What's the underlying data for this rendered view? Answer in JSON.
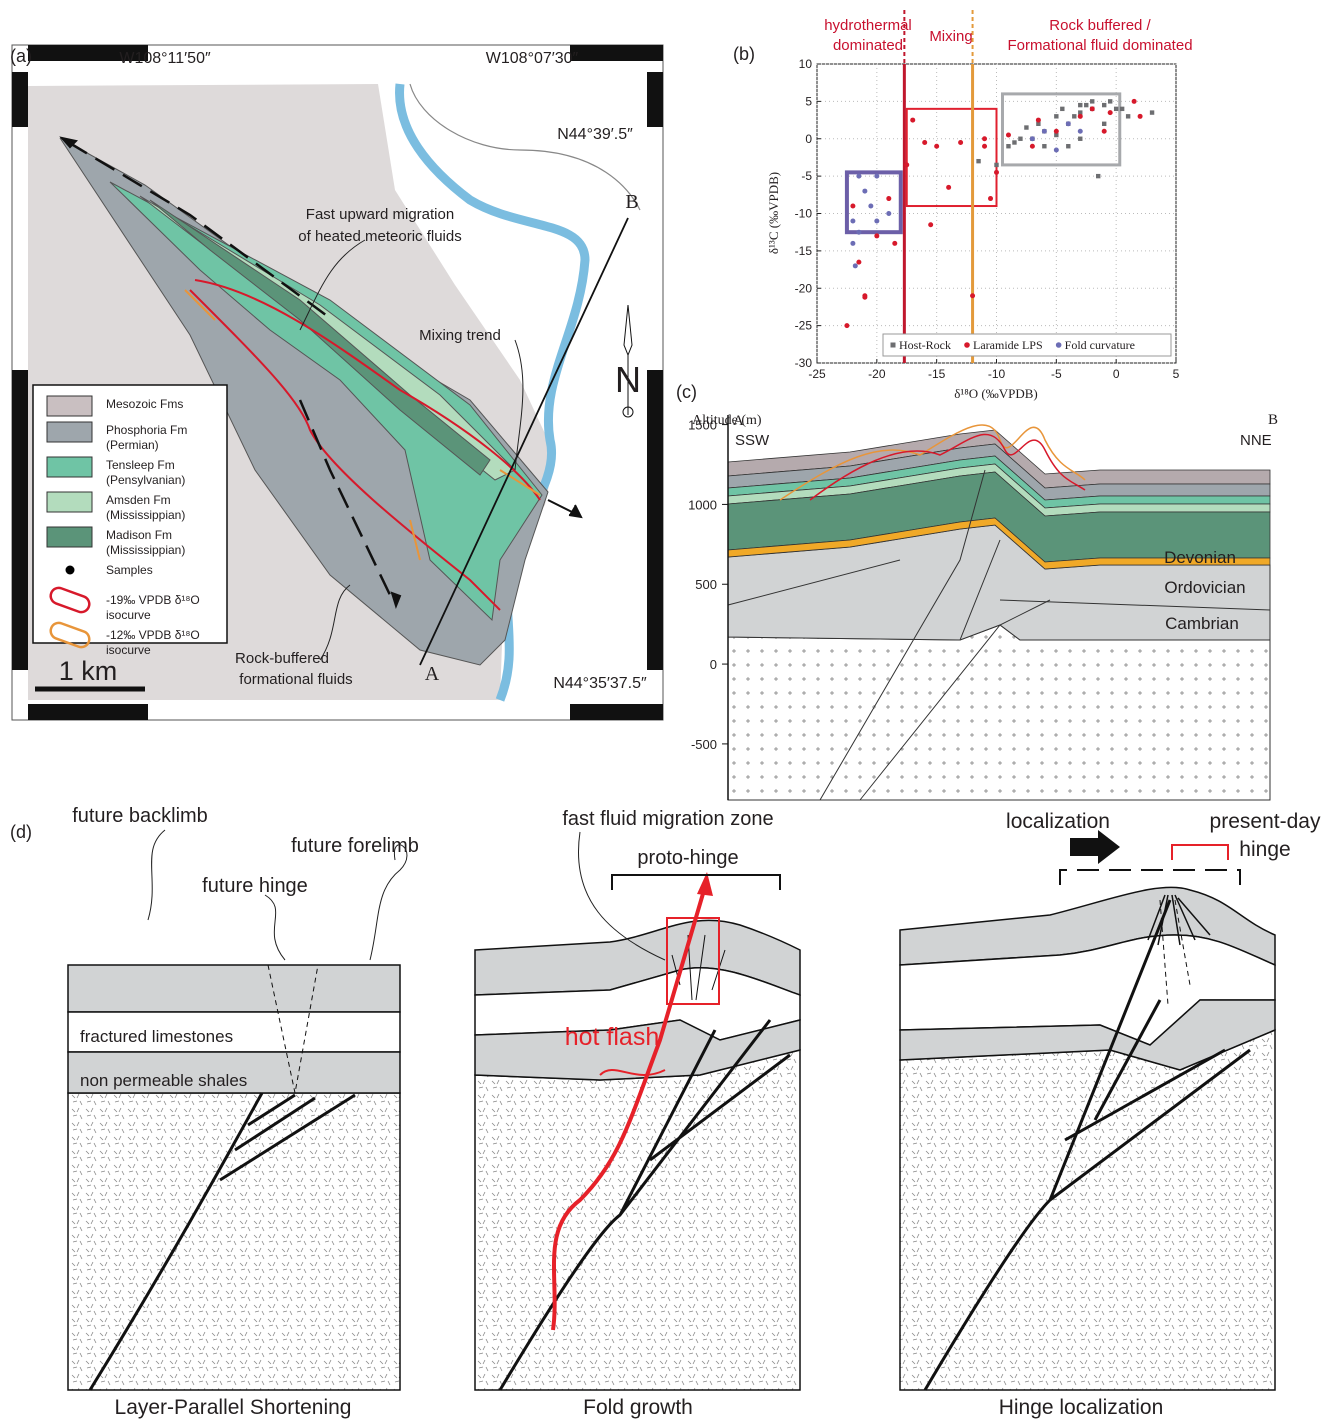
{
  "panel_a": {
    "label": "(a)",
    "lon_left": "W108°11′50″",
    "lon_right": "W108°07′30″",
    "lat_top": "N44°39′.5″",
    "lat_bottom": "N44°35′37.5″",
    "point_a": "A",
    "point_b": "B",
    "north": "N",
    "scale": "1 km",
    "annotations": [
      "Fast upward migration",
      "of heated meteoric fluids",
      "Mixing trend",
      "Rock-buffered",
      "formational fluids"
    ],
    "legend": [
      {
        "kind": "fill",
        "color": "#c9bfc1",
        "lines": [
          "Mesozoic Fms"
        ]
      },
      {
        "kind": "fill",
        "color": "#9ea6ac",
        "lines": [
          "Phosphoria Fm",
          "(Permian)"
        ]
      },
      {
        "kind": "fill",
        "color": "#6fc4a5",
        "lines": [
          "Tensleep Fm",
          "(Pensylvanian)"
        ]
      },
      {
        "kind": "fill",
        "color": "#b3dcbd",
        "lines": [
          "Amsden Fm",
          "(Mississippian)"
        ]
      },
      {
        "kind": "fill",
        "color": "#5b9479",
        "lines": [
          "Madison Fm",
          "(Mississippian)"
        ]
      },
      {
        "kind": "dot",
        "color": "#000000",
        "lines": [
          "Samples"
        ]
      },
      {
        "kind": "loop",
        "color": "#d7192b",
        "lines": [
          "-19‰ VPDB δ¹⁸O",
          "isocurve"
        ]
      },
      {
        "kind": "loop",
        "color": "#e8953a",
        "lines": [
          "-12‰ VPDB δ¹⁸O",
          "isocurve"
        ]
      }
    ]
  },
  "chart_data": {
    "type": "scatter",
    "panel_label": "(b)",
    "x_label": "δ¹⁸O (‰VPDB)",
    "y_label": "δ¹³C (‰VPDB)",
    "xlim": [
      -25,
      5
    ],
    "xticks": [
      -25,
      -20,
      -15,
      -10,
      -5,
      0,
      5
    ],
    "ylim": [
      -30,
      10
    ],
    "yticks": [
      -30,
      -25,
      -20,
      -15,
      -10,
      -5,
      0,
      5,
      10
    ],
    "grid": true,
    "legend": "lower right",
    "annotations": [
      {
        "lines": [
          "hydrothermal",
          "dominated"
        ],
        "color": "#c8102e"
      },
      {
        "lines": [
          "Mixing"
        ],
        "color": "#c8102e"
      },
      {
        "lines": [
          "Rock buffered /",
          "Formational fluid dominated"
        ],
        "color": "#c8102e"
      }
    ],
    "vlines": [
      {
        "value": -17.7,
        "color": "#c0172d"
      },
      {
        "value": -12,
        "color": "#e39a3b"
      }
    ],
    "boxes": [
      {
        "x": [
          -22.5,
          -18
        ],
        "y": [
          -12.5,
          -4.5
        ],
        "color": "#6c5fa8"
      },
      {
        "x": [
          -17.5,
          -10
        ],
        "y": [
          -9,
          4
        ],
        "color": "#e0202f"
      },
      {
        "x": [
          -9.5,
          0.3
        ],
        "y": [
          -3.5,
          6
        ],
        "color": "#a7a9ac"
      }
    ],
    "series": [
      {
        "name": "Host-Rock",
        "color": "#6d6e71",
        "marker": "square",
        "x": [
          -1,
          -2,
          -3,
          -4,
          -5,
          -6,
          -7,
          -2.5,
          -0.5,
          0,
          1,
          3,
          -8,
          -9,
          -11.5,
          -10,
          -6,
          -4,
          -3,
          -1,
          -1.5,
          -3.5,
          -2,
          -5,
          -6.5,
          -7.5,
          -8.5,
          -4.5,
          -3,
          0.5
        ],
        "values": [
          4.5,
          4,
          3.5,
          2,
          0.5,
          1,
          0,
          4.5,
          5,
          4,
          3,
          3.5,
          0,
          -1,
          -3,
          -3.5,
          -1,
          -1,
          0,
          2,
          -5,
          3,
          5,
          3,
          2,
          1.5,
          -0.5,
          4,
          4.5,
          4
        ]
      },
      {
        "name": "Laramide LPS",
        "color": "#d7192b",
        "marker": "circle",
        "x": [
          -22.5,
          -21,
          -21,
          -12,
          -21.5,
          -18.5,
          -17,
          -17.5,
          -15,
          -16,
          -13,
          -14,
          -11,
          -10,
          -11,
          -10.5,
          -9,
          -5,
          -3,
          -1,
          1.5,
          2,
          -2,
          -0.5,
          -6.5,
          -7,
          -15.5,
          -19,
          -22,
          -20
        ],
        "values": [
          -25,
          -21,
          -21.2,
          -21,
          -16.5,
          -14,
          2.5,
          -3.5,
          -1,
          -0.5,
          -0.5,
          -6.5,
          0,
          -4.5,
          -1,
          -8,
          0.5,
          1,
          3,
          1,
          5,
          3,
          4,
          3.5,
          2.5,
          -1,
          -11.5,
          -8,
          -9,
          -13
        ]
      },
      {
        "name": "Fold curvature",
        "color": "#6c6db5",
        "marker": "circle",
        "x": [
          -21.5,
          -20,
          -21,
          -20.5,
          -22,
          -21.5,
          -19,
          -21.8,
          -22,
          -20,
          -4,
          -6,
          -3,
          -5,
          -7
        ],
        "values": [
          -5,
          -5,
          -7,
          -9,
          -11,
          -12.5,
          -10,
          -17,
          -14,
          -11,
          2,
          1,
          1,
          -1.5,
          0
        ]
      }
    ]
  },
  "panel_c": {
    "label": "(c)",
    "y_axis_label": "Altitude (m)",
    "ylim": [
      -820,
      1560
    ],
    "yticks": [
      1500,
      1000,
      500,
      0,
      -500
    ],
    "end_a": "A",
    "end_b": "B",
    "dir_left": "SSW",
    "dir_right": "NNE",
    "units": [
      "Devonian",
      "Ordovician",
      "Cambrian"
    ]
  },
  "panel_d": {
    "label": "(d)",
    "stages": [
      {
        "title": "Layer-Parallel Shortening",
        "labels": [
          "future backlimb",
          "future hinge",
          "future forelimb",
          "fractured limestones",
          "non permeable shales"
        ]
      },
      {
        "title": "Fold growth",
        "labels": [
          "fast fluid migration zone",
          "proto-hinge",
          "hot flash"
        ]
      },
      {
        "title": "Hinge localization",
        "labels": [
          "localization",
          "present-day",
          "hinge"
        ]
      }
    ]
  }
}
